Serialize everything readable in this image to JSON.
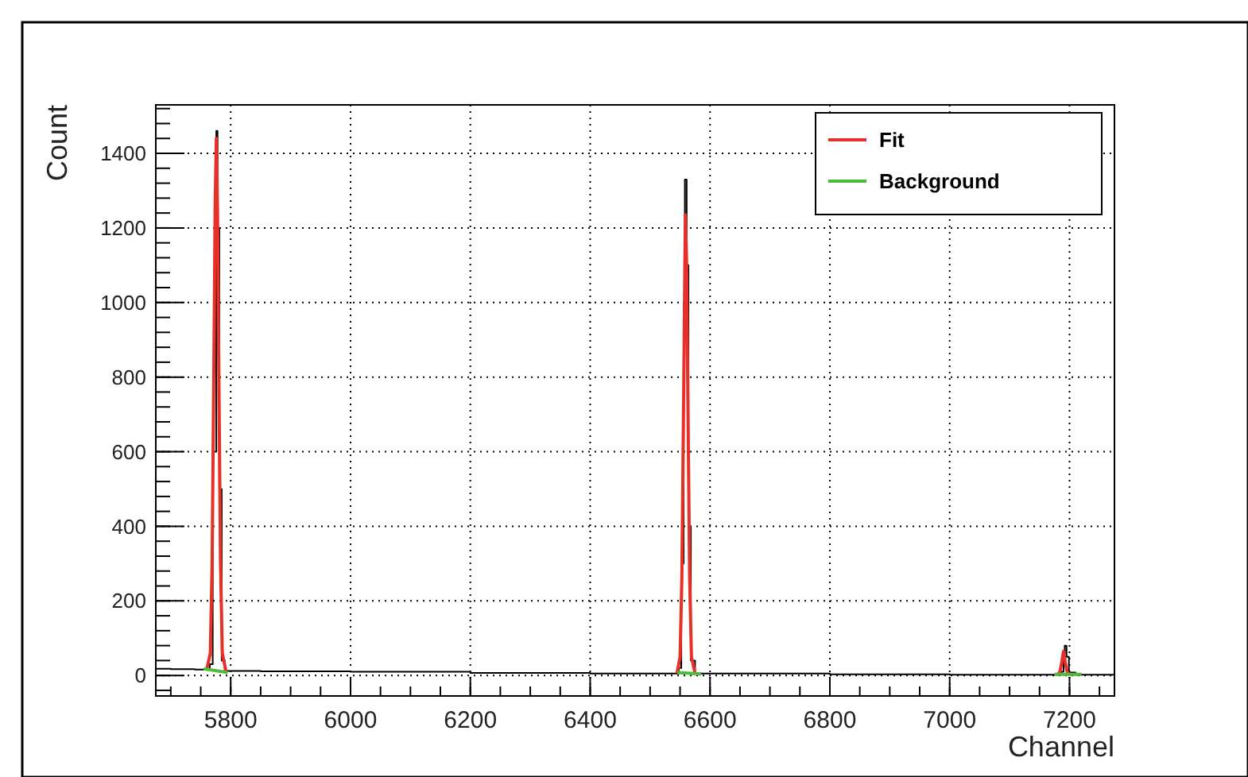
{
  "chart_data": {
    "type": "line",
    "xlabel": "Channel",
    "ylabel": "Count",
    "xlim": [
      5675,
      7275
    ],
    "ylim": [
      -55,
      1530
    ],
    "xticks": [
      5800,
      6000,
      6200,
      6400,
      6600,
      6800,
      7000,
      7200
    ],
    "yticks": [
      0,
      200,
      400,
      600,
      800,
      1000,
      1200,
      1400
    ],
    "grid": true,
    "legend": "top right",
    "series": [
      {
        "type": "step",
        "color": "#000000",
        "x": [
          5675,
          5700,
          5740,
          5760,
          5765,
          5770,
          5776,
          5778,
          5781,
          5785,
          5790,
          5850,
          6000,
          6200,
          6400,
          6540,
          6548,
          6552,
          6556,
          6558,
          6561,
          6564,
          6568,
          6575,
          6800,
          7000,
          7180,
          7186,
          7190,
          7192,
          7195,
          7199,
          7210,
          7275
        ],
        "values": [
          18,
          17,
          16,
          16,
          30,
          600,
          1460,
          1200,
          500,
          40,
          12,
          11,
          10,
          7,
          5,
          5,
          20,
          300,
          1000,
          1330,
          1100,
          400,
          40,
          5,
          3,
          2,
          2,
          10,
          60,
          80,
          50,
          8,
          2,
          2
        ]
      },
      {
        "name": "Fit",
        "color": "#e8302a",
        "x": [
          5760,
          5766,
          5769,
          5772,
          5774,
          5776,
          5778,
          5780,
          5783,
          5786,
          5792,
          null,
          6545,
          6550,
          6553,
          6556,
          6558,
          6559,
          6561,
          6563,
          6566,
          6569,
          6575,
          null,
          7180,
          7184,
          7187,
          7190,
          7193,
          7196,
          7200
        ],
        "values": [
          16,
          60,
          300,
          850,
          1250,
          1440,
          1250,
          850,
          300,
          60,
          12,
          null,
          6,
          50,
          260,
          750,
          1100,
          1235,
          1100,
          750,
          260,
          50,
          6,
          null,
          2,
          10,
          35,
          65,
          35,
          10,
          2
        ]
      },
      {
        "name": "Background",
        "color": "#4dbb3a",
        "x": [
          5755,
          5795,
          null,
          6545,
          6585,
          null,
          7175,
          7220
        ],
        "values": [
          18,
          8,
          null,
          8,
          4,
          null,
          3,
          3
        ]
      }
    ]
  }
}
